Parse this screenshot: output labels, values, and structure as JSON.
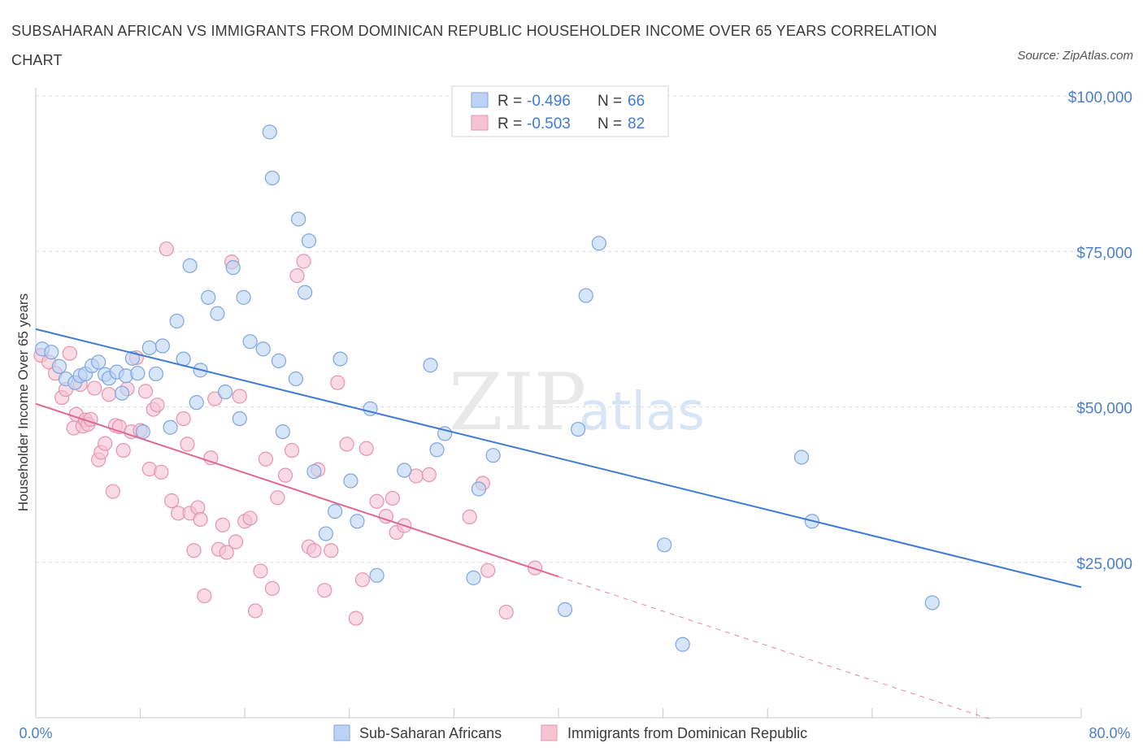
{
  "title": "SUBSAHARAN AFRICAN VS IMMIGRANTS FROM DOMINICAN REPUBLIC HOUSEHOLDER INCOME OVER 65 YEARS CORRELATION CHART",
  "source": "Source: ZipAtlas.com",
  "watermark": {
    "zip": "ZIP",
    "atlas": "atlas"
  },
  "legend": {
    "r_label": "R =",
    "n_label": "N =",
    "series1": {
      "r": "-0.496",
      "n": "66"
    },
    "series2": {
      "r": "-0.503",
      "n": "82"
    }
  },
  "colors": {
    "blue": "#3f7bd4",
    "blue_fill": "#bcd3f5",
    "pink": "#e0678f",
    "pink_fill": "#f6c3d3",
    "grid": "#dcdcdc"
  },
  "chart_data": {
    "type": "scatter",
    "ylabel": "Householder Income Over 65 years",
    "xlim": [
      0,
      80
    ],
    "ylim": [
      0,
      100000
    ],
    "x_tick_labels": {
      "left": "0.0%",
      "right": "80.0%"
    },
    "y_ticks": [
      {
        "value": 100000,
        "label": "$100,000"
      },
      {
        "value": 75000,
        "label": "$75,000"
      },
      {
        "value": 50000,
        "label": "$50,000"
      },
      {
        "value": 25000,
        "label": "$25,000"
      }
    ],
    "series": [
      {
        "name": "Sub-Saharan Africans",
        "color": "#3f7bd4",
        "trend": {
          "x": [
            0,
            80
          ],
          "y": [
            62500,
            21000
          ]
        },
        "points": [
          [
            0.5,
            59300
          ],
          [
            1.2,
            58800
          ],
          [
            1.8,
            56500
          ],
          [
            2.3,
            54500
          ],
          [
            3.0,
            53900
          ],
          [
            3.4,
            55000
          ],
          [
            3.8,
            55300
          ],
          [
            4.3,
            56600
          ],
          [
            4.8,
            57200
          ],
          [
            5.3,
            55200
          ],
          [
            5.6,
            54600
          ],
          [
            6.2,
            55600
          ],
          [
            6.6,
            52200
          ],
          [
            6.9,
            55000
          ],
          [
            7.4,
            57800
          ],
          [
            7.8,
            55400
          ],
          [
            8.2,
            46000
          ],
          [
            8.7,
            59500
          ],
          [
            9.2,
            55300
          ],
          [
            9.7,
            59800
          ],
          [
            10.3,
            46700
          ],
          [
            10.8,
            63800
          ],
          [
            11.3,
            57700
          ],
          [
            11.8,
            72700
          ],
          [
            12.3,
            50700
          ],
          [
            12.6,
            55900
          ],
          [
            13.2,
            67600
          ],
          [
            13.9,
            65000
          ],
          [
            14.5,
            52400
          ],
          [
            15.1,
            72400
          ],
          [
            15.6,
            48100
          ],
          [
            15.9,
            67600
          ],
          [
            16.4,
            60500
          ],
          [
            17.4,
            59300
          ],
          [
            17.9,
            94200
          ],
          [
            18.1,
            86800
          ],
          [
            18.6,
            57400
          ],
          [
            18.9,
            46000
          ],
          [
            19.9,
            54500
          ],
          [
            20.1,
            80200
          ],
          [
            20.6,
            68400
          ],
          [
            20.9,
            76700
          ],
          [
            21.3,
            39600
          ],
          [
            22.2,
            29600
          ],
          [
            22.9,
            33200
          ],
          [
            23.3,
            57700
          ],
          [
            24.1,
            38100
          ],
          [
            24.6,
            31600
          ],
          [
            25.6,
            49700
          ],
          [
            26.1,
            22900
          ],
          [
            28.2,
            39800
          ],
          [
            30.2,
            56700
          ],
          [
            30.7,
            43100
          ],
          [
            31.3,
            45700
          ],
          [
            33.5,
            22500
          ],
          [
            33.9,
            36800
          ],
          [
            35.0,
            42200
          ],
          [
            40.5,
            17400
          ],
          [
            41.5,
            46400
          ],
          [
            42.1,
            67900
          ],
          [
            43.1,
            76300
          ],
          [
            48.1,
            27800
          ],
          [
            49.5,
            11800
          ],
          [
            58.6,
            41900
          ],
          [
            59.4,
            31600
          ],
          [
            68.6,
            18500
          ]
        ]
      },
      {
        "name": "Immigrants from Dominican Republic",
        "color": "#e0678f",
        "trend": {
          "x": [
            0,
            40
          ],
          "y": [
            50500,
            22700
          ]
        },
        "trend_ext": {
          "x": [
            40,
            73
          ],
          "y": [
            22700,
            -200
          ]
        },
        "points": [
          [
            0.4,
            58300
          ],
          [
            1.0,
            57200
          ],
          [
            1.5,
            55400
          ],
          [
            2.0,
            51500
          ],
          [
            2.3,
            52800
          ],
          [
            2.6,
            58600
          ],
          [
            2.9,
            46600
          ],
          [
            3.1,
            48800
          ],
          [
            3.4,
            53600
          ],
          [
            3.6,
            46900
          ],
          [
            3.8,
            47900
          ],
          [
            4.0,
            47200
          ],
          [
            4.2,
            48000
          ],
          [
            4.5,
            53000
          ],
          [
            4.8,
            41500
          ],
          [
            5.0,
            42700
          ],
          [
            5.3,
            44100
          ],
          [
            5.6,
            52000
          ],
          [
            5.9,
            36400
          ],
          [
            6.1,
            47000
          ],
          [
            6.4,
            46800
          ],
          [
            6.7,
            43000
          ],
          [
            7.0,
            52900
          ],
          [
            7.3,
            46000
          ],
          [
            7.7,
            57900
          ],
          [
            8.0,
            46200
          ],
          [
            8.4,
            52500
          ],
          [
            8.7,
            40000
          ],
          [
            9.0,
            49600
          ],
          [
            9.3,
            50300
          ],
          [
            9.6,
            39500
          ],
          [
            10.0,
            75400
          ],
          [
            10.4,
            34900
          ],
          [
            10.9,
            32900
          ],
          [
            11.3,
            48100
          ],
          [
            11.6,
            44000
          ],
          [
            11.8,
            32900
          ],
          [
            12.1,
            26900
          ],
          [
            12.4,
            33800
          ],
          [
            12.6,
            31900
          ],
          [
            12.9,
            19600
          ],
          [
            13.4,
            41800
          ],
          [
            13.7,
            51300
          ],
          [
            14.0,
            27100
          ],
          [
            14.3,
            31000
          ],
          [
            14.6,
            26600
          ],
          [
            15.0,
            73300
          ],
          [
            15.3,
            28300
          ],
          [
            15.6,
            51700
          ],
          [
            16.0,
            31600
          ],
          [
            16.4,
            32100
          ],
          [
            16.8,
            17200
          ],
          [
            17.2,
            23600
          ],
          [
            17.6,
            41600
          ],
          [
            18.1,
            20800
          ],
          [
            18.5,
            35400
          ],
          [
            19.1,
            39000
          ],
          [
            19.6,
            43000
          ],
          [
            20.0,
            71100
          ],
          [
            20.5,
            73400
          ],
          [
            20.9,
            27500
          ],
          [
            21.3,
            26900
          ],
          [
            21.6,
            39900
          ],
          [
            22.1,
            20500
          ],
          [
            22.6,
            26900
          ],
          [
            23.1,
            53900
          ],
          [
            23.8,
            44000
          ],
          [
            24.5,
            16000
          ],
          [
            25.0,
            22200
          ],
          [
            25.3,
            43300
          ],
          [
            26.1,
            34800
          ],
          [
            26.8,
            32400
          ],
          [
            27.3,
            35300
          ],
          [
            27.6,
            29800
          ],
          [
            28.2,
            30900
          ],
          [
            29.1,
            38900
          ],
          [
            30.1,
            39100
          ],
          [
            33.2,
            32300
          ],
          [
            34.2,
            37700
          ],
          [
            34.6,
            23700
          ],
          [
            36.0,
            17000
          ],
          [
            38.2,
            24100
          ]
        ]
      }
    ]
  }
}
